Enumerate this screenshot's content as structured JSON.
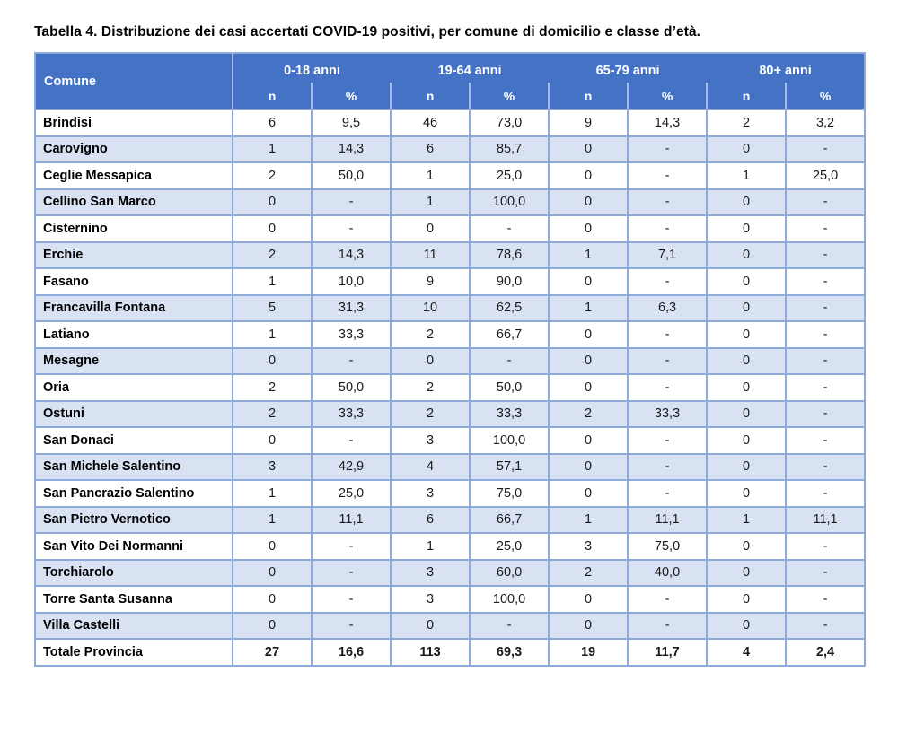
{
  "title": "Tabella 4. Distribuzione dei casi accertati COVID-19 positivi, per comune di domicilio e classe d’età.",
  "colors": {
    "header_bg": "#4472C4",
    "alt_row_bg": "#D9E2F3",
    "border": "#8EAADB",
    "header_text": "#FFFFFF"
  },
  "table": {
    "corner_header": "Comune",
    "age_groups": [
      "0-18 anni",
      "19-64 anni",
      "65-79 anni",
      "80+ anni"
    ],
    "sub_headers": [
      "n",
      "%"
    ],
    "rows": [
      {
        "comune": "Brindisi",
        "values": [
          "6",
          "9,5",
          "46",
          "73,0",
          "9",
          "14,3",
          "2",
          "3,2"
        ]
      },
      {
        "comune": "Carovigno",
        "values": [
          "1",
          "14,3",
          "6",
          "85,7",
          "0",
          "-",
          "0",
          "-"
        ]
      },
      {
        "comune": "Ceglie Messapica",
        "values": [
          "2",
          "50,0",
          "1",
          "25,0",
          "0",
          "-",
          "1",
          "25,0"
        ]
      },
      {
        "comune": "Cellino San Marco",
        "values": [
          "0",
          "-",
          "1",
          "100,0",
          "0",
          "-",
          "0",
          "-"
        ]
      },
      {
        "comune": "Cisternino",
        "values": [
          "0",
          "-",
          "0",
          "-",
          "0",
          "-",
          "0",
          "-"
        ]
      },
      {
        "comune": "Erchie",
        "values": [
          "2",
          "14,3",
          "11",
          "78,6",
          "1",
          "7,1",
          "0",
          "-"
        ]
      },
      {
        "comune": "Fasano",
        "values": [
          "1",
          "10,0",
          "9",
          "90,0",
          "0",
          "-",
          "0",
          "-"
        ]
      },
      {
        "comune": "Francavilla Fontana",
        "values": [
          "5",
          "31,3",
          "10",
          "62,5",
          "1",
          "6,3",
          "0",
          "-"
        ]
      },
      {
        "comune": "Latiano",
        "values": [
          "1",
          "33,3",
          "2",
          "66,7",
          "0",
          "-",
          "0",
          "-"
        ]
      },
      {
        "comune": "Mesagne",
        "values": [
          "0",
          "-",
          "0",
          "-",
          "0",
          "-",
          "0",
          "-"
        ]
      },
      {
        "comune": "Oria",
        "values": [
          "2",
          "50,0",
          "2",
          "50,0",
          "0",
          "-",
          "0",
          "-"
        ]
      },
      {
        "comune": "Ostuni",
        "values": [
          "2",
          "33,3",
          "2",
          "33,3",
          "2",
          "33,3",
          "0",
          "-"
        ]
      },
      {
        "comune": "San Donaci",
        "values": [
          "0",
          "-",
          "3",
          "100,0",
          "0",
          "-",
          "0",
          "-"
        ]
      },
      {
        "comune": "San Michele Salentino",
        "values": [
          "3",
          "42,9",
          "4",
          "57,1",
          "0",
          "-",
          "0",
          "-"
        ]
      },
      {
        "comune": "San Pancrazio Salentino",
        "values": [
          "1",
          "25,0",
          "3",
          "75,0",
          "0",
          "-",
          "0",
          "-"
        ]
      },
      {
        "comune": "San Pietro Vernotico",
        "values": [
          "1",
          "11,1",
          "6",
          "66,7",
          "1",
          "11,1",
          "1",
          "11,1"
        ]
      },
      {
        "comune": "San Vito Dei Normanni",
        "values": [
          "0",
          "-",
          "1",
          "25,0",
          "3",
          "75,0",
          "0",
          "-"
        ]
      },
      {
        "comune": "Torchiarolo",
        "values": [
          "0",
          "-",
          "3",
          "60,0",
          "2",
          "40,0",
          "0",
          "-"
        ]
      },
      {
        "comune": "Torre Santa Susanna",
        "values": [
          "0",
          "-",
          "3",
          "100,0",
          "0",
          "-",
          "0",
          "-"
        ]
      },
      {
        "comune": "Villa Castelli",
        "values": [
          "0",
          "-",
          "0",
          "-",
          "0",
          "-",
          "0",
          "-"
        ]
      }
    ],
    "total_row": {
      "comune": "Totale Provincia",
      "values": [
        "27",
        "16,6",
        "113",
        "69,3",
        "19",
        "11,7",
        "4",
        "2,4"
      ]
    }
  }
}
